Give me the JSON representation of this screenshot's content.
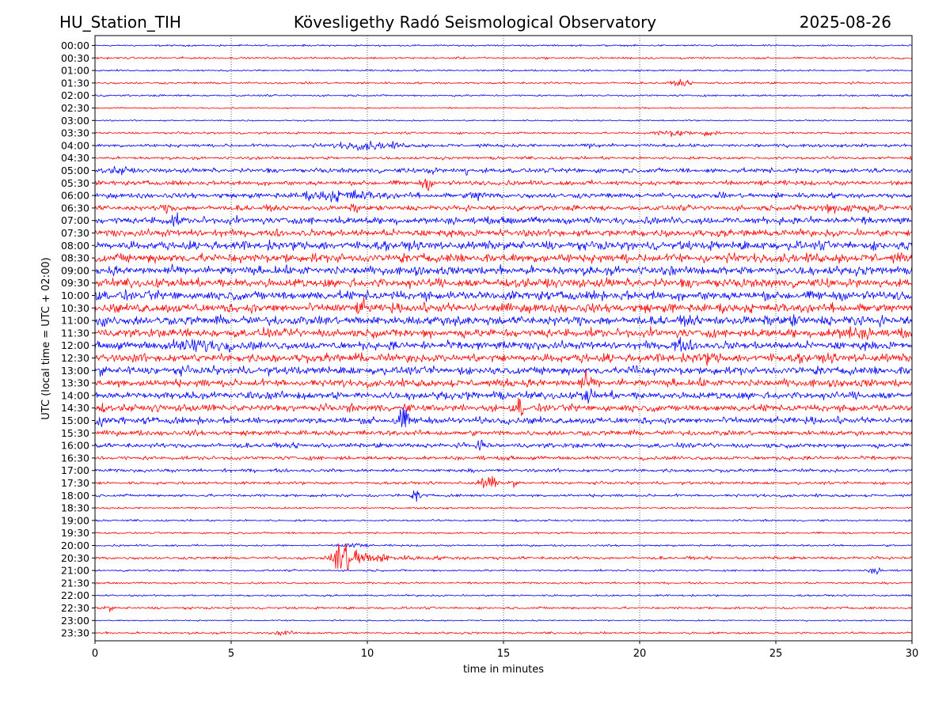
{
  "header": {
    "station": "HU_Station_TIH",
    "observatory": "Kövesligethy Radó Seismological Observatory",
    "date": "2025-08-26"
  },
  "chart_data": {
    "type": "line",
    "title": "Kövesligethy Radó Seismological Observatory",
    "xlabel": "time in minutes",
    "ylabel": "UTC (local time = UTC + 02:00)",
    "xlim": [
      0,
      30
    ],
    "xticks": [
      0,
      5,
      10,
      15,
      20,
      25,
      30
    ],
    "grid": "vertical dotted lines at 5-minute ticks",
    "colors": [
      "#0000ff",
      "#ff0000"
    ],
    "rows": [
      "00:00",
      "00:30",
      "01:00",
      "01:30",
      "02:00",
      "02:30",
      "03:00",
      "03:30",
      "04:00",
      "04:30",
      "05:00",
      "05:30",
      "06:00",
      "06:30",
      "07:00",
      "07:30",
      "08:00",
      "08:30",
      "09:00",
      "09:30",
      "10:00",
      "10:30",
      "11:00",
      "11:30",
      "12:00",
      "12:30",
      "13:00",
      "13:30",
      "14:00",
      "14:30",
      "15:00",
      "15:30",
      "16:00",
      "16:30",
      "17:00",
      "17:30",
      "18:00",
      "18:30",
      "19:00",
      "19:30",
      "20:00",
      "20:30",
      "21:00",
      "21:30",
      "22:00",
      "22:30",
      "23:00",
      "23:30"
    ],
    "noise_level": [
      0.18,
      0.22,
      0.18,
      0.22,
      0.2,
      0.15,
      0.15,
      0.22,
      0.35,
      0.3,
      0.5,
      0.5,
      0.55,
      0.55,
      0.75,
      0.75,
      0.9,
      0.95,
      0.9,
      0.95,
      0.95,
      0.95,
      0.95,
      0.9,
      0.85,
      0.9,
      0.85,
      0.8,
      0.8,
      0.75,
      0.7,
      0.55,
      0.5,
      0.4,
      0.35,
      0.3,
      0.3,
      0.2,
      0.2,
      0.2,
      0.2,
      0.3,
      0.2,
      0.2,
      0.2,
      0.25,
      0.15,
      0.22
    ],
    "events": [
      {
        "row": "01:30",
        "minute": 21.5,
        "amplitude": 0.5,
        "duration": 0.3
      },
      {
        "row": "03:30",
        "minute": 21.2,
        "amplitude": 0.6,
        "duration": 0.6
      },
      {
        "row": "03:30",
        "minute": 22.5,
        "amplitude": 0.4,
        "duration": 0.4
      },
      {
        "row": "04:00",
        "minute": 10.0,
        "amplitude": 0.6,
        "duration": 1.2
      },
      {
        "row": "04:00",
        "minute": 18.5,
        "amplitude": 0.4,
        "duration": 0.3
      },
      {
        "row": "05:00",
        "minute": 0.9,
        "amplitude": 0.6,
        "duration": 0.3
      },
      {
        "row": "05:00",
        "minute": 12.3,
        "amplitude": 0.5,
        "duration": 0.2
      },
      {
        "row": "05:00",
        "minute": 13.6,
        "amplitude": 0.9,
        "duration": 0.1
      },
      {
        "row": "05:30",
        "minute": 12.2,
        "amplitude": 0.9,
        "duration": 0.2
      },
      {
        "row": "06:00",
        "minute": 9.0,
        "amplitude": 0.7,
        "duration": 1.5
      },
      {
        "row": "06:00",
        "minute": 14.1,
        "amplitude": 0.8,
        "duration": 0.3
      },
      {
        "row": "06:30",
        "minute": 2.7,
        "amplitude": 0.5,
        "duration": 0.3
      },
      {
        "row": "06:30",
        "minute": 9.6,
        "amplitude": 0.4,
        "duration": 0.2
      },
      {
        "row": "06:30",
        "minute": 27.5,
        "amplitude": 0.6,
        "duration": 1.2
      },
      {
        "row": "07:00",
        "minute": 2.8,
        "amplitude": 0.7,
        "duration": 0.3
      },
      {
        "row": "10:30",
        "minute": 9.8,
        "amplitude": 0.8,
        "duration": 0.2
      },
      {
        "row": "11:00",
        "minute": 0.3,
        "amplitude": 0.9,
        "duration": 0.2
      },
      {
        "row": "11:00",
        "minute": 13.3,
        "amplitude": 0.6,
        "duration": 0.2
      },
      {
        "row": "11:00",
        "minute": 25.6,
        "amplitude": 0.6,
        "duration": 0.2
      },
      {
        "row": "11:00",
        "minute": 27.8,
        "amplitude": 0.5,
        "duration": 0.2
      },
      {
        "row": "11:30",
        "minute": 27.8,
        "amplitude": 0.6,
        "duration": 0.8
      },
      {
        "row": "12:00",
        "minute": 3.8,
        "amplitude": 0.8,
        "duration": 1.0
      },
      {
        "row": "12:00",
        "minute": 21.5,
        "amplitude": 0.7,
        "duration": 0.4
      },
      {
        "row": "12:30",
        "minute": 22.5,
        "amplitude": 0.6,
        "duration": 0.3
      },
      {
        "row": "13:00",
        "minute": 19.9,
        "amplitude": 1.2,
        "duration": 0.15
      },
      {
        "row": "13:30",
        "minute": 18.0,
        "amplitude": 1.2,
        "duration": 0.2
      },
      {
        "row": "14:00",
        "minute": 18.1,
        "amplitude": 1.1,
        "duration": 0.2
      },
      {
        "row": "14:30",
        "minute": 15.6,
        "amplitude": 1.6,
        "duration": 0.12
      },
      {
        "row": "15:00",
        "minute": 0.2,
        "amplitude": 0.7,
        "duration": 0.2
      },
      {
        "row": "15:00",
        "minute": 11.3,
        "amplitude": 1.7,
        "duration": 0.3
      },
      {
        "row": "16:00",
        "minute": 14.2,
        "amplitude": 1.2,
        "duration": 0.15
      },
      {
        "row": "17:30",
        "minute": 14.3,
        "amplitude": 0.8,
        "duration": 0.3
      },
      {
        "row": "17:30",
        "minute": 14.6,
        "amplitude": 0.9,
        "duration": 0.15
      },
      {
        "row": "17:30",
        "minute": 15.3,
        "amplitude": 0.5,
        "duration": 0.15
      },
      {
        "row": "18:00",
        "minute": 11.8,
        "amplitude": 1.2,
        "duration": 0.15
      },
      {
        "row": "20:00",
        "minute": 9.5,
        "amplitude": 0.5,
        "duration": 0.4
      },
      {
        "row": "20:30",
        "minute": 8.9,
        "amplitude": 4.5,
        "duration": 3.5
      },
      {
        "row": "21:00",
        "minute": 28.7,
        "amplitude": 0.5,
        "duration": 0.3
      },
      {
        "row": "22:30",
        "minute": 0.5,
        "amplitude": 0.4,
        "duration": 0.2
      },
      {
        "row": "23:30",
        "minute": 7.0,
        "amplitude": 0.4,
        "duration": 0.3
      }
    ]
  }
}
